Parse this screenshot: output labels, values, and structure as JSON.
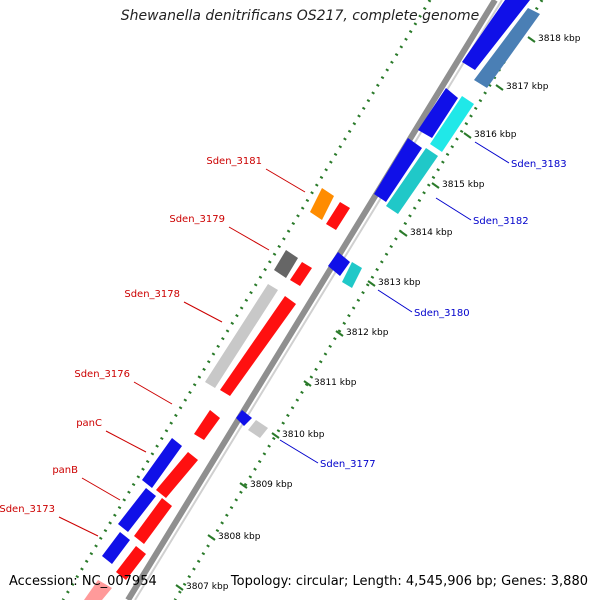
{
  "title": "Shewanella denitrificans OS217, complete genome",
  "accession": "Accession: NC_007954",
  "summary": "Topology: circular; Length: 4,545,906 bp; Genes: 3,880",
  "colors": {
    "blue": "#1010e8",
    "red": "#ff1010",
    "steelblue": "#4a7fb5",
    "cyan": "#20e8e8",
    "teal": "#20c8c8",
    "orange": "#ff8c00",
    "gray": "#c8c8c8",
    "darkgray": "#666666",
    "tick": "#2a7a2a",
    "left_label": "#cc0000",
    "right_label": "#0000cc"
  },
  "scale_ticks": [
    "3818 kbp",
    "3817 kbp",
    "3816 kbp",
    "3815 kbp",
    "3814 kbp",
    "3813 kbp",
    "3812 kbp",
    "3811 kbp",
    "3810 kbp",
    "3809 kbp",
    "3808 kbp",
    "3807 kbp"
  ],
  "left_labels": [
    "Sden_3181",
    "Sden_3179",
    "Sden_3178",
    "Sden_3176",
    "panC",
    "panB",
    "Sden_3173"
  ],
  "right_labels": [
    "Sden_3183",
    "Sden_3182",
    "Sden_3180",
    "Sden_3177"
  ]
}
